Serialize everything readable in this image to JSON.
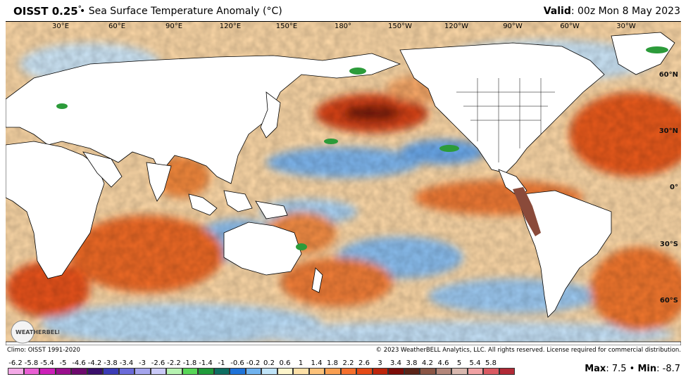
{
  "header": {
    "product": "OISST 0.25",
    "degree": "°",
    "title": "• Sea Surface Temperature Anomaly (°C)",
    "valid_label": "Valid",
    "valid_value": ": 00z Mon 8 May 2023"
  },
  "map": {
    "lon_labels": [
      "30°E",
      "60°E",
      "90°E",
      "120°E",
      "150°E",
      "180°",
      "150°W",
      "120°W",
      "90°W",
      "60°W",
      "30°W"
    ],
    "lat_labels": [
      "60°N",
      "30°N",
      "0°",
      "30°S",
      "60°S"
    ],
    "logo_text": "WEATHERBELL"
  },
  "footer": {
    "climo": "Climo: OISST 1991-2020",
    "copyright": "© 2023 WeatherBELL Analytics, LLC. All rights reserved. License required for commercial distribution.",
    "max_label": "Max",
    "max_value": ": 7.5",
    "sep": "•",
    "min_label": "Min",
    "min_value": ": -8.7"
  },
  "colorbar": {
    "ticks": [
      "-6.2",
      "-5.8",
      "-5.4",
      "-5",
      "-4.6",
      "-4.2",
      "-3.8",
      "-3.4",
      "-3",
      "-2.6",
      "-2.2",
      "-1.8",
      "-1.4",
      "-1",
      "-0.6",
      "-0.2",
      "0.2",
      "0.6",
      "1",
      "1.4",
      "1.8",
      "2.2",
      "2.6",
      "3",
      "3.4",
      "3.8",
      "4.2",
      "4.6",
      "5",
      "5.4",
      "5.8"
    ],
    "colors": [
      "#f3a9e6",
      "#e85fd3",
      "#cc20b8",
      "#9a0f8d",
      "#6d0a6d",
      "#3a0f6b",
      "#3b3bb5",
      "#6a6ad8",
      "#a4a4ec",
      "#c9c9f7",
      "#b6f2b1",
      "#57d657",
      "#1f9b3a",
      "#0e6e62",
      "#1e73d8",
      "#6fb2ee",
      "#bfe3f7",
      "#fdf5cb",
      "#fde0a7",
      "#fcc27a",
      "#f99f51",
      "#f5702d",
      "#e44a16",
      "#bd250b",
      "#7d0d09",
      "#5a2418",
      "#8a5545",
      "#b3867a",
      "#d8b7ae",
      "#f0a1a3",
      "#d95a62",
      "#b12a36"
    ]
  }
}
